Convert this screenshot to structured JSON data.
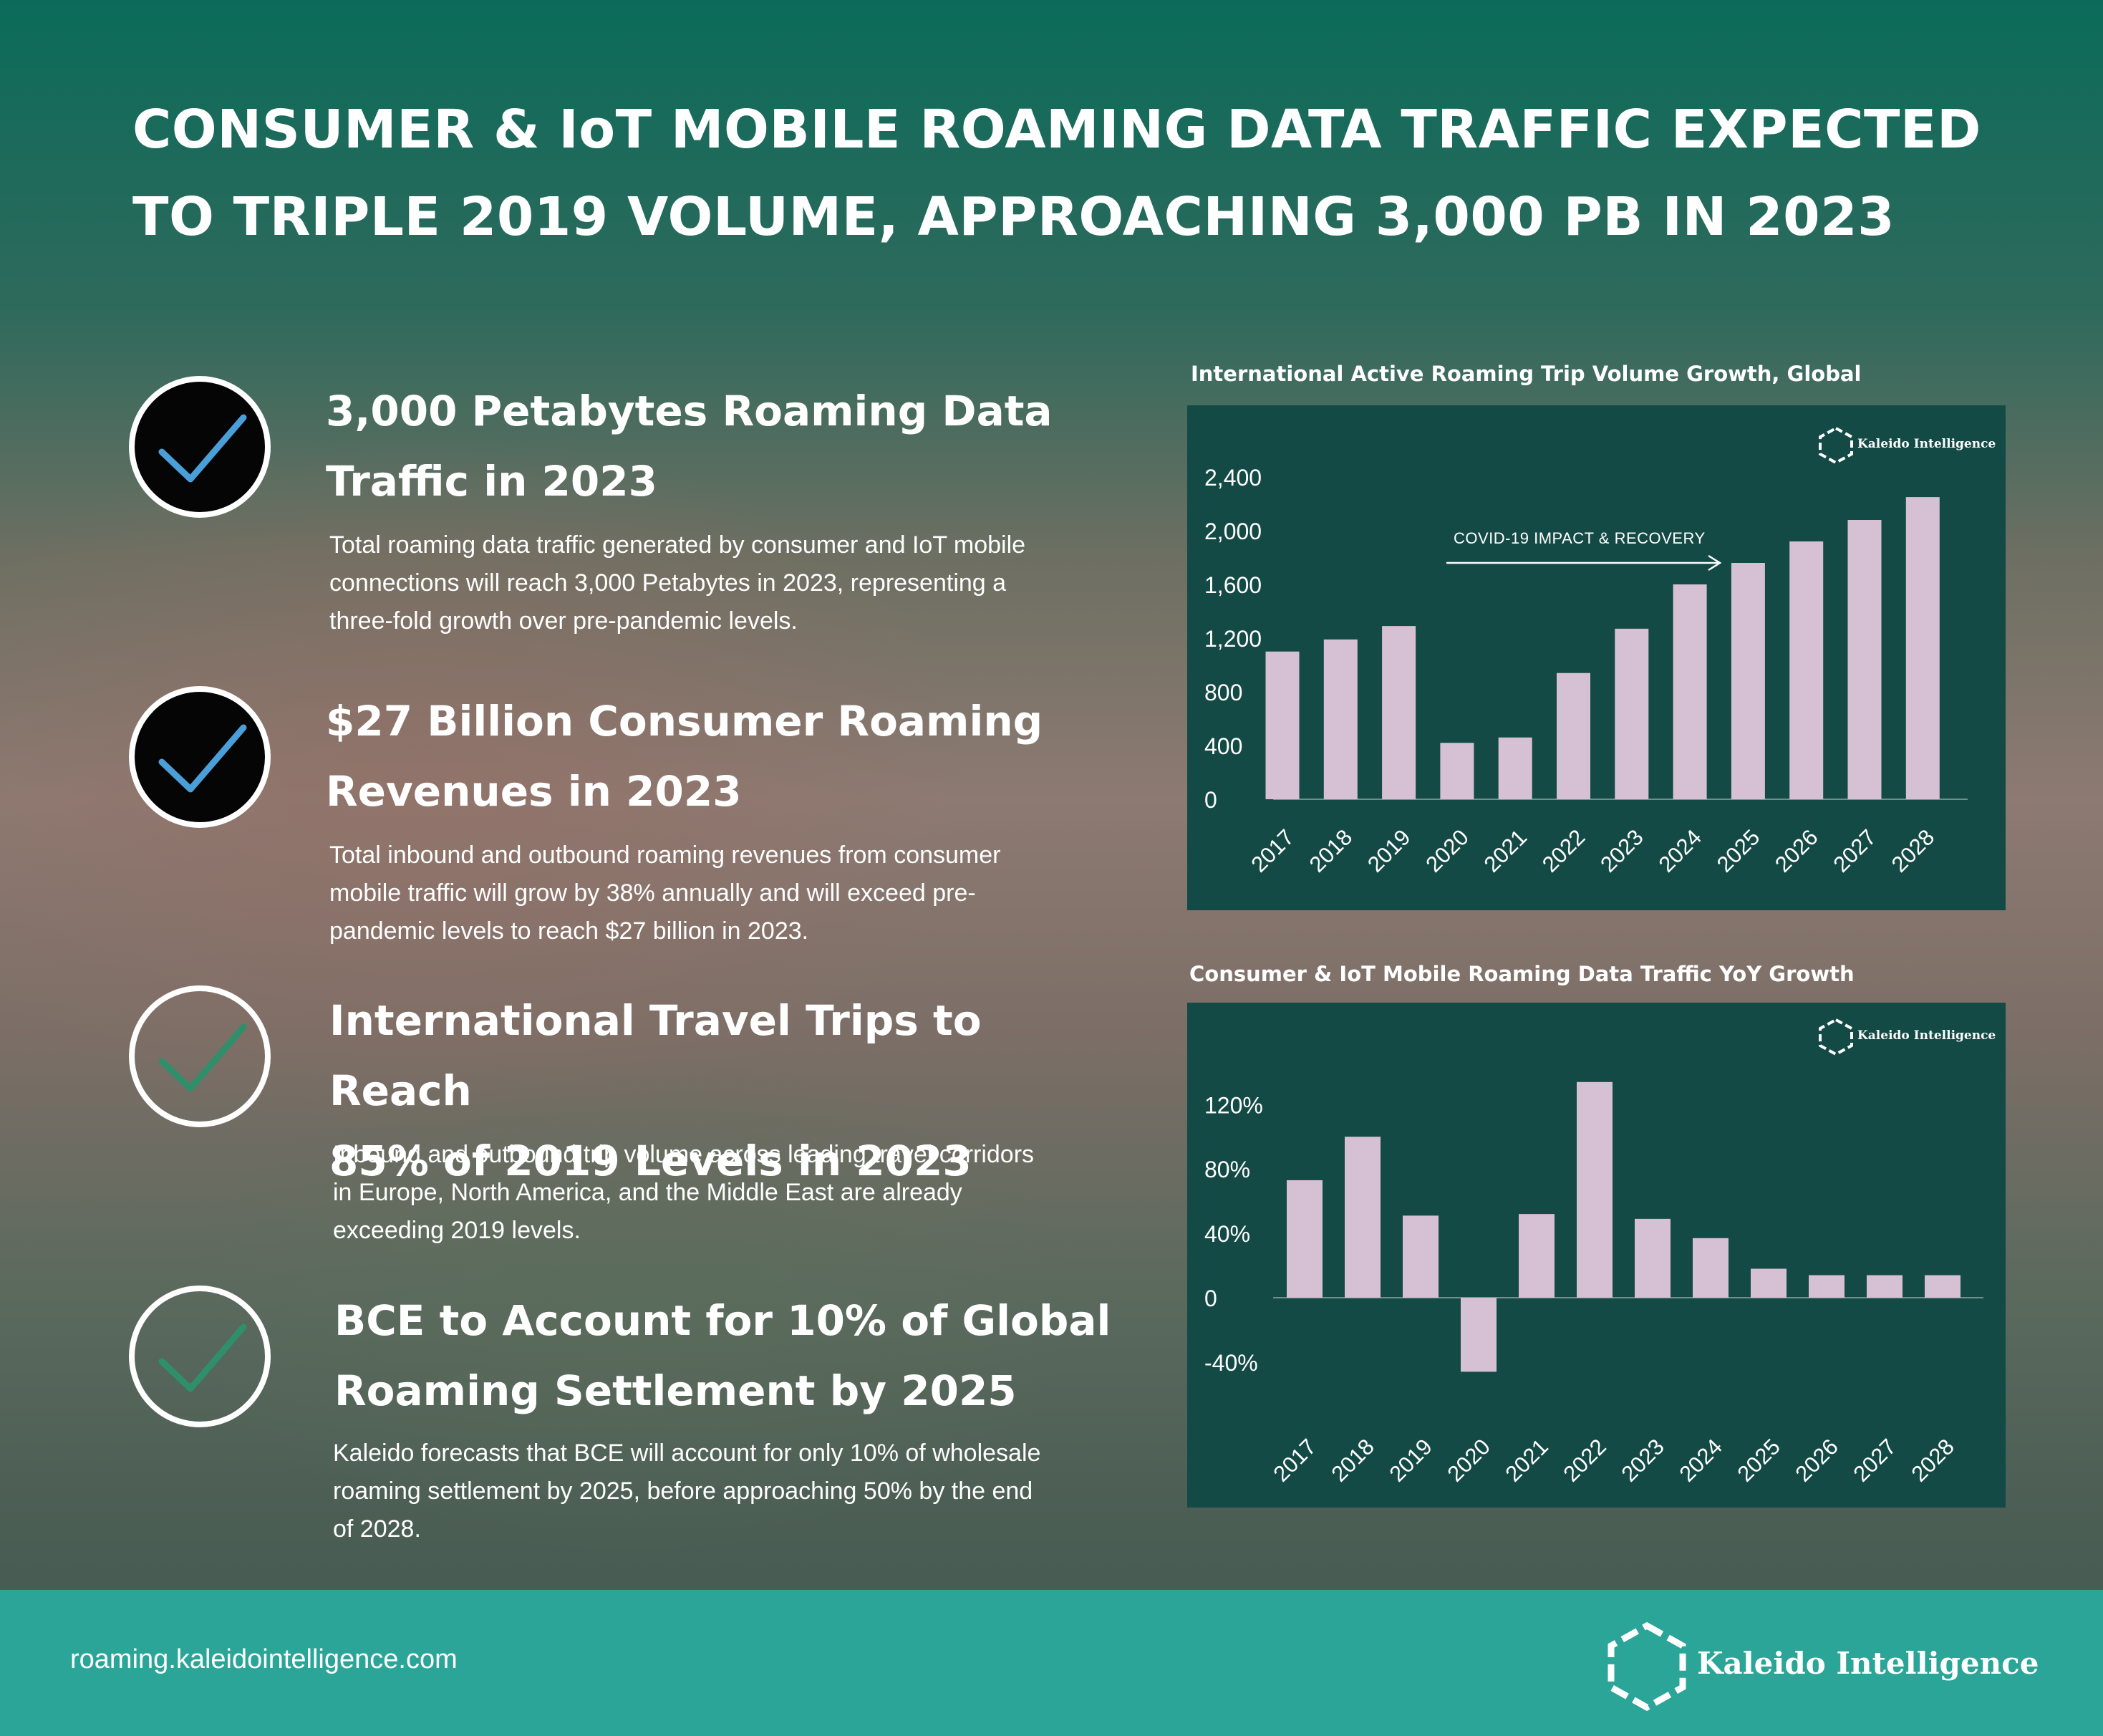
{
  "title": {
    "line1": "CONSUMER & IoT MOBILE ROAMING DATA TRAFFIC EXPECTED",
    "line2": "TO TRIPLE 2019 VOLUME, APPROACHING 3,000 PB IN 2023"
  },
  "features": [
    {
      "heading_line1": "3,000 Petabytes Roaming Data",
      "heading_line2": "Traffic in 2023",
      "body_line1": "Total roaming data traffic generated by consumer and IoT mobile",
      "body_line2": "connections will reach 3,000 Petabytes in 2023, representing a",
      "body_line3": "three-fold growth over pre-pandemic levels.",
      "check_color": "#4a9fd8"
    },
    {
      "heading_line1": "$27 Billion Consumer Roaming",
      "heading_line2": "Revenues in 2023",
      "body_line1": "Total inbound and outbound roaming revenues from consumer",
      "body_line2": "mobile traffic will grow by 38% annually and will exceed pre-",
      "body_line3": "pandemic levels to reach $27 billion in 2023.",
      "check_color": "#4a9fd8"
    },
    {
      "heading_line1": "International Travel Trips to Reach",
      "heading_line2": "85% of 2019 Levels in 2023",
      "body_line1": "Inbound and outbound trip volume across leading travel corridors",
      "body_line2": "in Europe, North America, and the Middle East are already",
      "body_line3": "exceeding 2019 levels.",
      "check_color": "#2e8f6a"
    },
    {
      "heading_line1": "BCE to Account for 10% of Global",
      "heading_line2": "Roaming Settlement by 2025",
      "body_line1": "Kaleido forecasts that BCE will account for only 10% of wholesale",
      "body_line2": "roaming settlement by 2025, before approaching 50% by the end",
      "body_line3": "of 2028.",
      "check_color": "#2e8f6a"
    }
  ],
  "brand": {
    "name": "Kaleido Intelligence",
    "url": "roaming.kaleidointelligence.com"
  },
  "colors": {
    "bar": "#d6c0d3",
    "panel": "#144a45",
    "footer": "#2aa597"
  },
  "chart_data": [
    {
      "type": "bar",
      "title": "International Active Roaming Trip Volume Growth, Global",
      "categories": [
        "2017",
        "2018",
        "2019",
        "2020",
        "2021",
        "2022",
        "2023",
        "2024",
        "2025",
        "2026",
        "2027",
        "2028"
      ],
      "values": [
        1100,
        1190,
        1290,
        420,
        460,
        940,
        1270,
        1600,
        1760,
        1920,
        2080,
        2250
      ],
      "yticks": [
        "0",
        "400",
        "800",
        "1,200",
        "1,600",
        "2,000",
        "2,400"
      ],
      "ylim": [
        0,
        2400
      ],
      "annotation": "COVID-19 IMPACT & RECOVERY",
      "grid": false
    },
    {
      "type": "bar",
      "title": "Consumer & IoT Mobile Roaming Data Traffic YoY Growth",
      "categories": [
        "2017",
        "2018",
        "2019",
        "2020",
        "2021",
        "2022",
        "2023",
        "2024",
        "2025",
        "2026",
        "2027",
        "2028"
      ],
      "values": [
        73,
        100,
        51,
        -46,
        52,
        134,
        49,
        37,
        18,
        14,
        14,
        14
      ],
      "yticks": [
        "-40%",
        "0",
        "40%",
        "80%",
        "120%"
      ],
      "ylim": [
        -40,
        120
      ],
      "grid": false
    }
  ]
}
